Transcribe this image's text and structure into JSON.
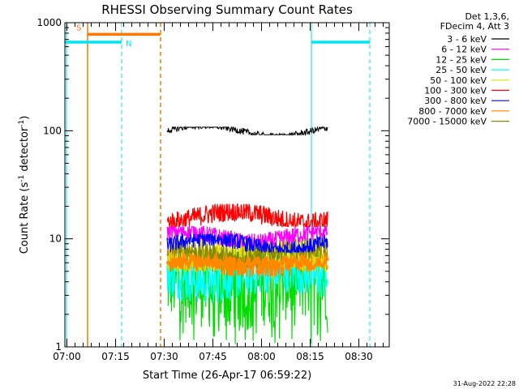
{
  "chart_data": {
    "type": "line",
    "title": "RHESSI Observing Summary Count Rates",
    "xlabel": "Start Time (26-Apr-17 06:59:22)",
    "ylabel_main": "Count Rate (s",
    "ylabel_sup1": "-1",
    "ylabel_mid": " detector",
    "ylabel_sup2": "-1",
    "ylabel_end": ")",
    "y_scale": "log",
    "ylim": [
      1,
      1000
    ],
    "xlim_minutes": [
      0,
      100
    ],
    "x_ticks": [
      {
        "label": "07:00",
        "min": 0.63
      },
      {
        "label": "07:15",
        "min": 15.63
      },
      {
        "label": "07:30",
        "min": 30.63
      },
      {
        "label": "07:45",
        "min": 45.63
      },
      {
        "label": "08:00",
        "min": 60.63
      },
      {
        "label": "08:15",
        "min": 75.63
      },
      {
        "label": "08:30",
        "min": 90.63
      }
    ],
    "y_ticks": [
      {
        "label": "1",
        "value": 1
      },
      {
        "label": "10",
        "value": 10
      },
      {
        "label": "100",
        "value": 100
      },
      {
        "label": "1000",
        "value": 1000
      }
    ],
    "legend_header": [
      "Det 1,3,6,",
      "FDecim 4, Att 3"
    ],
    "legend_placement": "right",
    "data_window_minutes": [
      31.5,
      81.0
    ],
    "series": [
      {
        "name": "3 - 6 keV",
        "color": "#000000",
        "level": 100,
        "min": 92,
        "max": 108
      },
      {
        "name": "6 - 12 keV",
        "color": "#ff00ff",
        "level": 10.5,
        "min": 8.5,
        "max": 13
      },
      {
        "name": "12 - 25 keV",
        "color": "#00dd00",
        "level": 4,
        "min": 1,
        "max": 8
      },
      {
        "name": "25 - 50 keV",
        "color": "#00ffff",
        "level": 4.5,
        "min": 2.5,
        "max": 7
      },
      {
        "name": "50 - 100 keV",
        "color": "#dddd00",
        "level": 7,
        "min": 5,
        "max": 10
      },
      {
        "name": "100 - 300 keV",
        "color": "#ff0000",
        "level": 16,
        "min": 13,
        "max": 21
      },
      {
        "name": "300 - 800 keV",
        "color": "#0000ff",
        "level": 9,
        "min": 7.5,
        "max": 11
      },
      {
        "name": "800 - 7000 keV",
        "color": "#ff8800",
        "level": 6,
        "min": 4.5,
        "max": 8
      },
      {
        "name": "7000 - 15000 keV",
        "color": "#888800",
        "level": 7.5,
        "min": 5.5,
        "max": 10
      }
    ],
    "annotations": [
      {
        "label": "S",
        "color": "#ff7700",
        "level": 780,
        "x_start": 7.0,
        "x_end": 29.5
      },
      {
        "label": "N",
        "color": "#00e5ee",
        "level": 660,
        "x_start": 0,
        "x_end": 17.5
      }
    ],
    "night_intervals": [
      {
        "x_start": 0,
        "x_end": 17.5
      },
      {
        "x_start": 76.0,
        "x_end": 94.0
      }
    ],
    "saa_interval": {
      "x_start": 7.0,
      "x_end": 29.5
    },
    "footer_timestamp": "31-Aug-2022 22:28",
    "colors": {
      "background": "#ffffff",
      "axes": "#000000",
      "saa": "#ff7700",
      "night": "#00e5ee"
    }
  }
}
